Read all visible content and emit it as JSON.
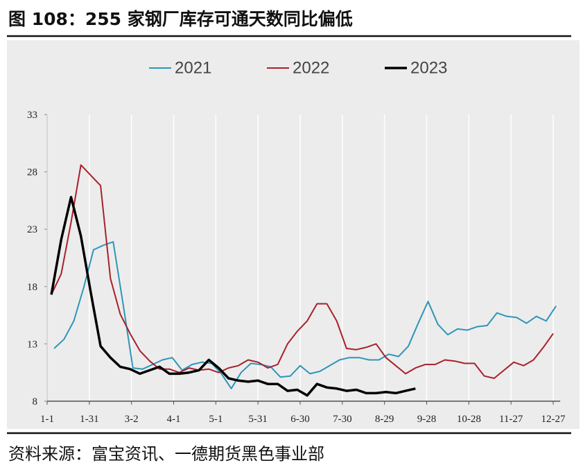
{
  "chart_data": {
    "type": "line",
    "title": "图 108：255 家钢厂库存可通天数同比偏低",
    "source": "资料来源：富宝资讯、一德期货黑色事业部",
    "xlim": [
      0,
      365
    ],
    "xticks": [
      {
        "value": 0,
        "label": "1-1"
      },
      {
        "value": 30,
        "label": "1-31"
      },
      {
        "value": 60,
        "label": "3-2"
      },
      {
        "value": 90,
        "label": "4-1"
      },
      {
        "value": 120,
        "label": "5-1"
      },
      {
        "value": 150,
        "label": "5-31"
      },
      {
        "value": 180,
        "label": "6-30"
      },
      {
        "value": 210,
        "label": "7-30"
      },
      {
        "value": 240,
        "label": "8-29"
      },
      {
        "value": 270,
        "label": "9-28"
      },
      {
        "value": 300,
        "label": "10-28"
      },
      {
        "value": 330,
        "label": "11-27"
      },
      {
        "value": 360,
        "label": "12-27"
      }
    ],
    "ylim": [
      8,
      33
    ],
    "yticks": [
      8,
      13,
      18,
      23,
      28,
      33
    ],
    "grid": true,
    "legend": "top",
    "series": [
      {
        "name": "2021",
        "color": "#2e95b8",
        "width": 2,
        "x": [
          5,
          12,
          19,
          26,
          33,
          40,
          47,
          54,
          61,
          68,
          75,
          82,
          89,
          96,
          103,
          110,
          117,
          124,
          131,
          138,
          145,
          152,
          159,
          166,
          173,
          180,
          187,
          194,
          201,
          208,
          215,
          222,
          229,
          236,
          243,
          250,
          257,
          264,
          271,
          278,
          285,
          292,
          299,
          306,
          313,
          320,
          327,
          334,
          341,
          348,
          355,
          362
        ],
        "values": [
          12.6,
          13.4,
          15.0,
          17.9,
          21.2,
          21.6,
          21.9,
          16.5,
          10.9,
          10.8,
          11.2,
          11.6,
          11.8,
          10.7,
          11.2,
          11.4,
          11.3,
          10.4,
          9.1,
          10.5,
          11.3,
          11.2,
          11.0,
          10.1,
          10.2,
          11.1,
          10.4,
          10.6,
          11.1,
          11.6,
          11.8,
          11.8,
          11.6,
          11.6,
          12.1,
          11.9,
          12.8,
          14.8,
          16.7,
          14.7,
          13.8,
          14.3,
          14.2,
          14.5,
          14.6,
          15.7,
          15.4,
          15.3,
          14.8,
          15.4,
          15.0,
          16.3
        ]
      },
      {
        "name": "2022",
        "color": "#a8202a",
        "width": 2,
        "x": [
          3,
          10,
          17,
          24,
          31,
          38,
          45,
          52,
          59,
          66,
          73,
          80,
          87,
          94,
          101,
          108,
          115,
          122,
          129,
          136,
          143,
          150,
          157,
          164,
          171,
          178,
          185,
          192,
          199,
          206,
          213,
          220,
          227,
          234,
          241,
          248,
          255,
          262,
          269,
          276,
          283,
          290,
          297,
          304,
          311,
          318,
          325,
          332,
          339,
          346,
          353,
          360
        ],
        "values": [
          17.3,
          19.1,
          23.6,
          28.6,
          27.7,
          26.8,
          18.7,
          15.6,
          13.9,
          12.4,
          11.5,
          10.8,
          10.8,
          10.5,
          10.9,
          10.7,
          10.8,
          10.5,
          10.9,
          11.1,
          11.6,
          11.4,
          10.9,
          11.2,
          13.0,
          14.1,
          15.0,
          16.5,
          16.5,
          15.0,
          12.6,
          12.5,
          12.7,
          13.0,
          11.8,
          11.1,
          10.4,
          10.9,
          11.2,
          11.2,
          11.6,
          11.5,
          11.3,
          11.3,
          10.2,
          10.0,
          10.7,
          11.4,
          11.1,
          11.6,
          12.7,
          13.9
        ]
      },
      {
        "name": "2023",
        "color": "#000000",
        "width": 3.5,
        "x": [
          3,
          10,
          17,
          24,
          31,
          38,
          45,
          52,
          59,
          66,
          73,
          80,
          87,
          94,
          101,
          108,
          115,
          122,
          129,
          136,
          143,
          150,
          157,
          164,
          171,
          178,
          185,
          192,
          199,
          206,
          213,
          220,
          227,
          234,
          241,
          248,
          255,
          262
        ],
        "values": [
          17.3,
          22.1,
          25.8,
          22.4,
          17.5,
          12.8,
          11.8,
          11.0,
          10.8,
          10.4,
          10.7,
          11.0,
          10.4,
          10.4,
          10.5,
          10.7,
          11.6,
          10.9,
          10.0,
          9.8,
          9.7,
          9.8,
          9.5,
          9.5,
          8.9,
          9.0,
          8.5,
          9.5,
          9.2,
          9.1,
          8.9,
          9.0,
          8.7,
          8.7,
          8.8,
          8.7,
          8.9,
          9.1
        ]
      }
    ]
  }
}
